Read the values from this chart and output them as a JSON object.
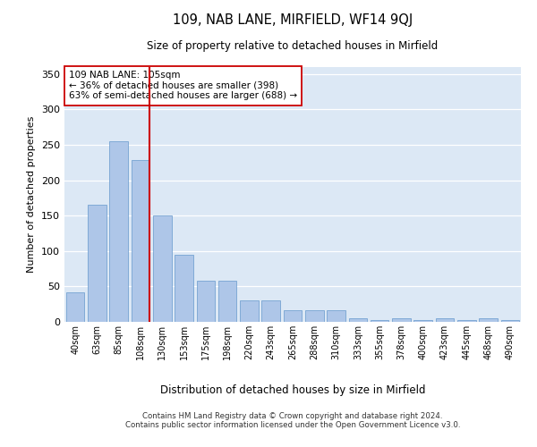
{
  "title": "109, NAB LANE, MIRFIELD, WF14 9QJ",
  "subtitle": "Size of property relative to detached houses in Mirfield",
  "xlabel": "Distribution of detached houses by size in Mirfield",
  "ylabel": "Number of detached properties",
  "footer1": "Contains HM Land Registry data © Crown copyright and database right 2024.",
  "footer2": "Contains public sector information licensed under the Open Government Licence v3.0.",
  "annotation_line1": "109 NAB LANE: 105sqm",
  "annotation_line2": "← 36% of detached houses are smaller (398)",
  "annotation_line3": "63% of semi-detached houses are larger (688) →",
  "bar_color": "#aec6e8",
  "bar_edge_color": "#6699cc",
  "bg_color": "#dce8f5",
  "redline_color": "#cc0000",
  "categories": [
    "40sqm",
    "63sqm",
    "85sqm",
    "108sqm",
    "130sqm",
    "153sqm",
    "175sqm",
    "198sqm",
    "220sqm",
    "243sqm",
    "265sqm",
    "288sqm",
    "310sqm",
    "333sqm",
    "355sqm",
    "378sqm",
    "400sqm",
    "423sqm",
    "445sqm",
    "468sqm",
    "490sqm"
  ],
  "values": [
    42,
    165,
    255,
    228,
    150,
    95,
    58,
    58,
    30,
    30,
    17,
    17,
    17,
    5,
    2,
    5,
    2,
    5,
    2,
    5,
    3
  ],
  "redline_index": 3,
  "ylim": [
    0,
    360
  ],
  "yticks": [
    0,
    50,
    100,
    150,
    200,
    250,
    300,
    350
  ]
}
